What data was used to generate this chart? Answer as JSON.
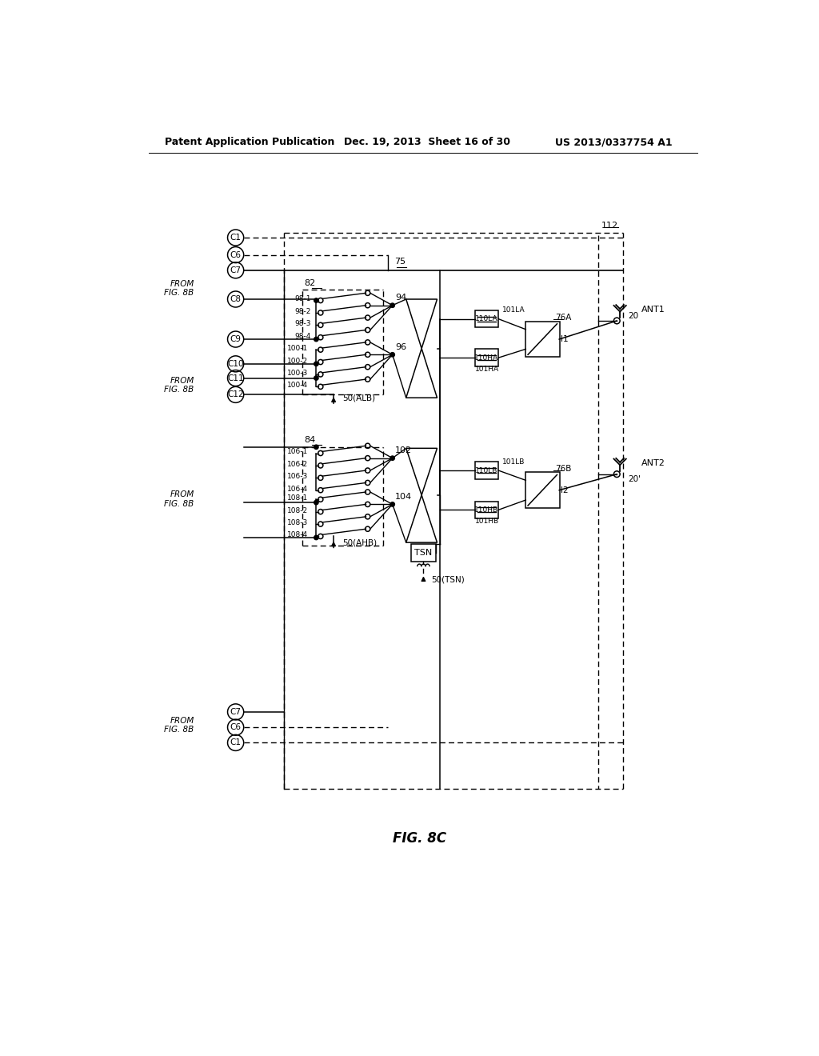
{
  "title": "FIG. 8C",
  "header_left": "Patent Application Publication",
  "header_center": "Dec. 19, 2013  Sheet 16 of 30",
  "header_right": "US 2013/0337754 A1",
  "bg_color": "#ffffff",
  "line_color": "#000000"
}
